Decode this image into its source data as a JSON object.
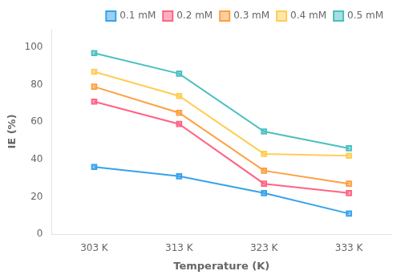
{
  "chart_data": {
    "type": "line",
    "xlabel": "Temperature (K)",
    "ylabel": "IE (%)",
    "categories": [
      "303 K",
      "313 K",
      "323 K",
      "333 K"
    ],
    "series": [
      {
        "name": "0.1 mM",
        "values": [
          36,
          31,
          22,
          11
        ]
      },
      {
        "name": "0.2 mM",
        "values": [
          71,
          59,
          27,
          22
        ]
      },
      {
        "name": "0.3 mM",
        "values": [
          79,
          65,
          34,
          27
        ]
      },
      {
        "name": "0.4 mM",
        "values": [
          87,
          74,
          43,
          42
        ]
      },
      {
        "name": "0.5 mM",
        "values": [
          97,
          86,
          55,
          46
        ]
      }
    ],
    "ylim": [
      0,
      110
    ],
    "yticks": [
      0,
      20,
      40,
      60,
      80,
      100
    ],
    "marker": "square",
    "legend": "upper right",
    "grid": false
  }
}
